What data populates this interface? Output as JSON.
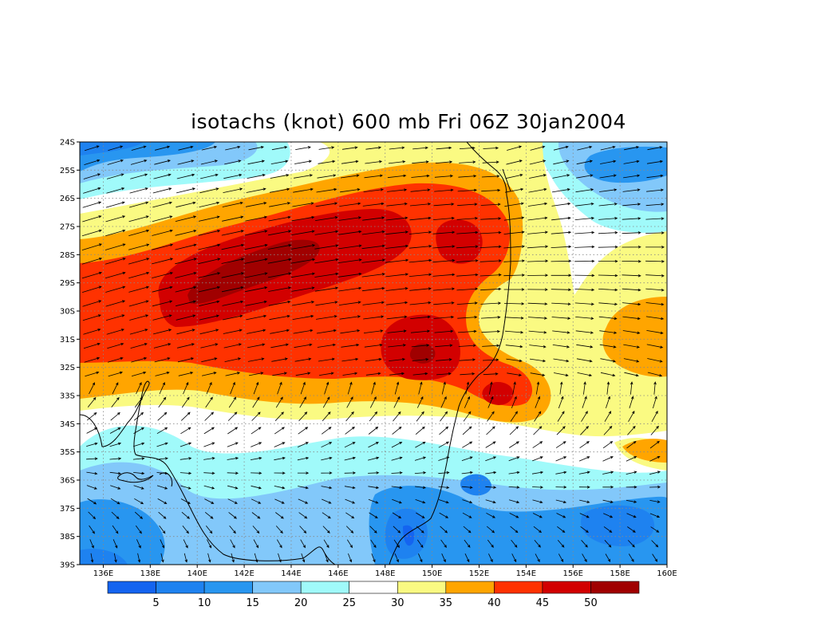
{
  "title": "isotachs (knot) 600 mb Fri 06Z 30jan2004",
  "map": {
    "lon_range": [
      135,
      160
    ],
    "lat_range": [
      -39,
      -24
    ],
    "lon_ticks": [
      "136E",
      "138E",
      "140E",
      "142E",
      "144E",
      "146E",
      "148E",
      "150E",
      "152E",
      "154E",
      "156E",
      "158E",
      "160E"
    ],
    "lat_ticks": [
      "24S",
      "25S",
      "26S",
      "27S",
      "28S",
      "29S",
      "30S",
      "31S",
      "32S",
      "33S",
      "34S",
      "35S",
      "36S",
      "37S",
      "38S",
      "39S"
    ],
    "grid": "dotted",
    "colors": {
      "c_lt5": "#1464f0",
      "c5_10": "#1e82f0",
      "c10_15": "#2896f0",
      "c15_20": "#82c8fa",
      "c20_25": "#a0fafa",
      "c25_30": "#ffffff",
      "c30_35": "#fafa82",
      "c35_40": "#ffa500",
      "c40_45": "#ff3200",
      "c45_50": "#d20000",
      "c_gt50": "#a00000"
    }
  },
  "colorbar": {
    "labels": [
      "5",
      "10",
      "15",
      "20",
      "25",
      "30",
      "35",
      "40",
      "45",
      "50"
    ],
    "colors": [
      "#1464f0",
      "#1e82f0",
      "#2896f0",
      "#82c8fa",
      "#a0fafa",
      "#ffffff",
      "#fafa82",
      "#ffa500",
      "#ff3200",
      "#d20000",
      "#a00000"
    ]
  }
}
